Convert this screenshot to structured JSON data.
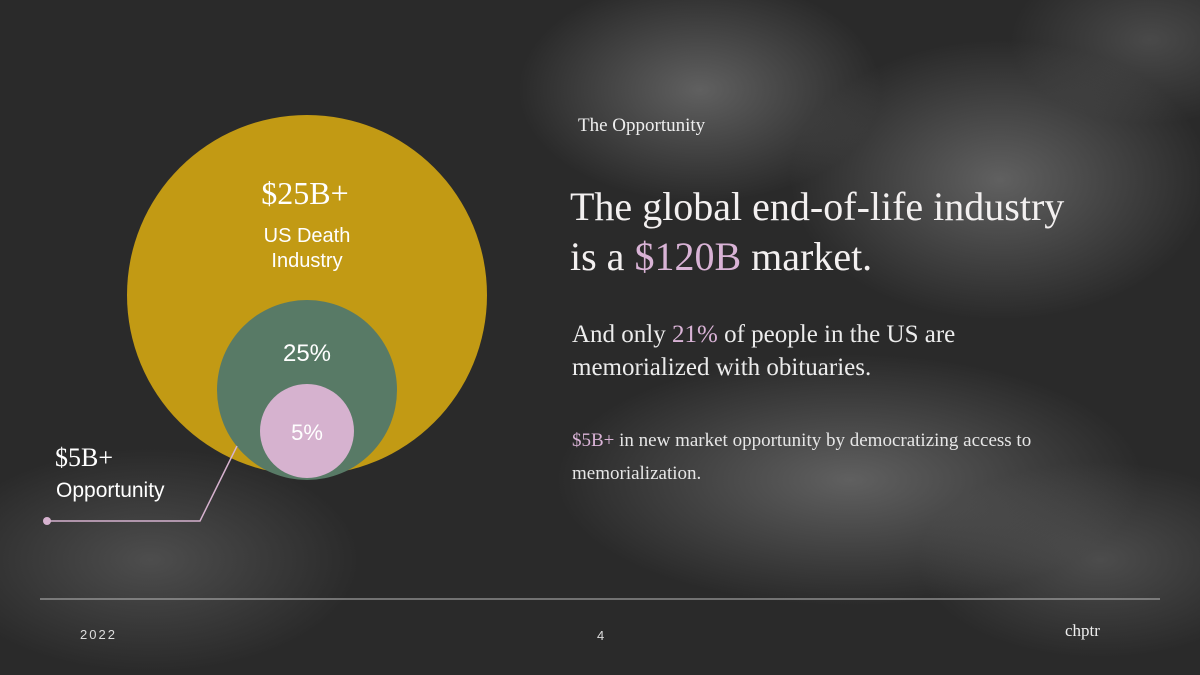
{
  "eyebrow": "The Opportunity",
  "headline": {
    "line1": "The global end-of-life industry",
    "before": "is a ",
    "highlight": "$120B",
    "after": " market."
  },
  "subhead": {
    "before": "And only ",
    "highlight": "21%",
    "after": " of people in the US are memorialized with obituaries."
  },
  "body": {
    "highlight": "$5B+",
    "after": " in new market opportunity by democratizing access to memorialization."
  },
  "diagram": {
    "outer": {
      "value": "$25B+",
      "label_line1": "US Death",
      "label_line2": "Industry"
    },
    "middle": {
      "label": "25%"
    },
    "inner": {
      "label": "5%"
    },
    "callout": {
      "value": "$5B+",
      "label": "Opportunity"
    }
  },
  "footer": {
    "year": "2022",
    "page": "4",
    "brand": "chptr"
  }
}
